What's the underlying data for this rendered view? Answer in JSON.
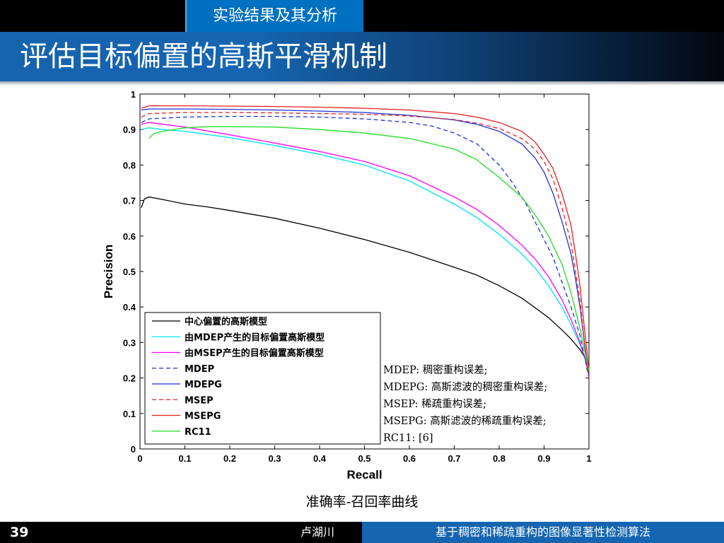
{
  "header": {
    "section": "实验结果及其分析",
    "title": "评估目标偏置的高斯平滑机制"
  },
  "caption": "准确率-召回率曲线",
  "notes": [
    "MDEP: 稠密重构误差;",
    "MDEPG: 高斯滤波的稠密重构误差;",
    "MSEP: 稀疏重构误差;",
    "MSEPG: 高斯滤波的稀疏重构误差;",
    "RC11: [6]"
  ],
  "footer": {
    "page": "39",
    "author": "卢湖川",
    "title": "基于稠密和稀疏重构的图像显著性检测算法"
  },
  "chart_data": {
    "type": "line",
    "xlabel": "Recall",
    "ylabel": "Precision",
    "xlim": [
      0,
      1
    ],
    "ylim": [
      0,
      1
    ],
    "xticks": [
      "0",
      "0.1",
      "0.2",
      "0.3",
      "0.4",
      "0.5",
      "0.6",
      "0.7",
      "0.8",
      "0.9",
      "1"
    ],
    "yticks": [
      "0",
      "0.1",
      "0.2",
      "0.3",
      "0.4",
      "0.5",
      "0.6",
      "0.7",
      "0.8",
      "0.9",
      "1"
    ],
    "legend_position": "bottom-left",
    "grid": false,
    "series": [
      {
        "name": "中心偏置的高斯模型",
        "color": "#000000",
        "dash": "solid",
        "x": [
          0.003,
          0.01,
          0.02,
          0.05,
          0.1,
          0.15,
          0.2,
          0.3,
          0.4,
          0.5,
          0.6,
          0.7,
          0.75,
          0.8,
          0.85,
          0.88,
          0.91,
          0.94,
          0.96,
          0.98,
          0.99,
          1.0
        ],
        "y": [
          0.68,
          0.705,
          0.71,
          0.703,
          0.69,
          0.682,
          0.672,
          0.65,
          0.622,
          0.59,
          0.554,
          0.512,
          0.49,
          0.46,
          0.425,
          0.398,
          0.37,
          0.335,
          0.31,
          0.28,
          0.26,
          0.23
        ]
      },
      {
        "name": "由MDEP产生的目标偏置高斯模型",
        "color": "#00e5ee",
        "dash": "solid",
        "x": [
          0.003,
          0.02,
          0.05,
          0.1,
          0.2,
          0.3,
          0.4,
          0.5,
          0.6,
          0.7,
          0.75,
          0.8,
          0.85,
          0.88,
          0.91,
          0.94,
          0.96,
          0.98,
          0.99,
          1.0
        ],
        "y": [
          0.9,
          0.905,
          0.9,
          0.895,
          0.877,
          0.855,
          0.83,
          0.8,
          0.755,
          0.69,
          0.652,
          0.605,
          0.55,
          0.51,
          0.46,
          0.4,
          0.35,
          0.295,
          0.26,
          0.22
        ]
      },
      {
        "name": "由MSEP产生的目标偏置高斯模型",
        "color": "#ff00ff",
        "dash": "solid",
        "x": [
          0.003,
          0.02,
          0.05,
          0.1,
          0.2,
          0.3,
          0.4,
          0.5,
          0.6,
          0.7,
          0.75,
          0.8,
          0.85,
          0.88,
          0.91,
          0.94,
          0.96,
          0.98,
          0.99,
          1.0
        ],
        "y": [
          0.915,
          0.92,
          0.915,
          0.907,
          0.885,
          0.862,
          0.838,
          0.81,
          0.77,
          0.71,
          0.675,
          0.63,
          0.575,
          0.535,
          0.485,
          0.42,
          0.365,
          0.3,
          0.26,
          0.21
        ]
      },
      {
        "name": "MDEP",
        "color": "#1f2fd8",
        "dash": "dashed",
        "x": [
          0.003,
          0.02,
          0.1,
          0.2,
          0.3,
          0.4,
          0.5,
          0.6,
          0.65,
          0.7,
          0.75,
          0.8,
          0.83,
          0.86,
          0.88,
          0.9,
          0.92,
          0.94,
          0.96,
          0.98,
          0.99,
          1.0
        ],
        "y": [
          0.92,
          0.93,
          0.935,
          0.937,
          0.937,
          0.935,
          0.93,
          0.92,
          0.91,
          0.89,
          0.86,
          0.8,
          0.75,
          0.69,
          0.64,
          0.59,
          0.54,
          0.47,
          0.4,
          0.32,
          0.26,
          0.2
        ]
      },
      {
        "name": "MDEPG",
        "color": "#1f2fd8",
        "dash": "solid",
        "x": [
          0.003,
          0.02,
          0.1,
          0.2,
          0.3,
          0.4,
          0.5,
          0.6,
          0.7,
          0.75,
          0.8,
          0.85,
          0.88,
          0.9,
          0.92,
          0.94,
          0.96,
          0.97,
          0.98,
          0.99,
          1.0
        ],
        "y": [
          0.955,
          0.958,
          0.958,
          0.957,
          0.955,
          0.952,
          0.948,
          0.94,
          0.927,
          0.915,
          0.895,
          0.86,
          0.82,
          0.78,
          0.72,
          0.64,
          0.55,
          0.48,
          0.4,
          0.3,
          0.2
        ]
      },
      {
        "name": "MSEP",
        "color": "#e8201e",
        "dash": "dashed",
        "x": [
          0.003,
          0.02,
          0.1,
          0.2,
          0.3,
          0.4,
          0.5,
          0.6,
          0.7,
          0.75,
          0.8,
          0.85,
          0.88,
          0.9,
          0.92,
          0.94,
          0.96,
          0.97,
          0.98,
          0.99,
          1.0
        ],
        "y": [
          0.935,
          0.945,
          0.948,
          0.948,
          0.947,
          0.945,
          0.943,
          0.938,
          0.928,
          0.918,
          0.903,
          0.875,
          0.845,
          0.81,
          0.76,
          0.68,
          0.58,
          0.5,
          0.42,
          0.3,
          0.2
        ]
      },
      {
        "name": "MSEPG",
        "color": "#e8201e",
        "dash": "solid",
        "x": [
          0.003,
          0.02,
          0.1,
          0.2,
          0.3,
          0.4,
          0.5,
          0.6,
          0.7,
          0.75,
          0.8,
          0.85,
          0.88,
          0.9,
          0.92,
          0.94,
          0.96,
          0.97,
          0.98,
          0.99,
          1.0
        ],
        "y": [
          0.96,
          0.967,
          0.967,
          0.966,
          0.965,
          0.963,
          0.96,
          0.955,
          0.945,
          0.935,
          0.92,
          0.895,
          0.865,
          0.83,
          0.79,
          0.72,
          0.63,
          0.55,
          0.46,
          0.34,
          0.22
        ]
      },
      {
        "name": "RC11",
        "color": "#22dd22",
        "dash": "solid",
        "x": [
          0.02,
          0.03,
          0.05,
          0.1,
          0.15,
          0.2,
          0.3,
          0.4,
          0.5,
          0.6,
          0.7,
          0.75,
          0.8,
          0.85,
          0.88,
          0.91,
          0.94,
          0.96,
          0.98,
          0.99,
          1.0
        ],
        "y": [
          0.875,
          0.888,
          0.895,
          0.905,
          0.908,
          0.908,
          0.907,
          0.9,
          0.89,
          0.875,
          0.845,
          0.815,
          0.765,
          0.71,
          0.66,
          0.6,
          0.52,
          0.44,
          0.34,
          0.28,
          0.22
        ]
      }
    ]
  }
}
